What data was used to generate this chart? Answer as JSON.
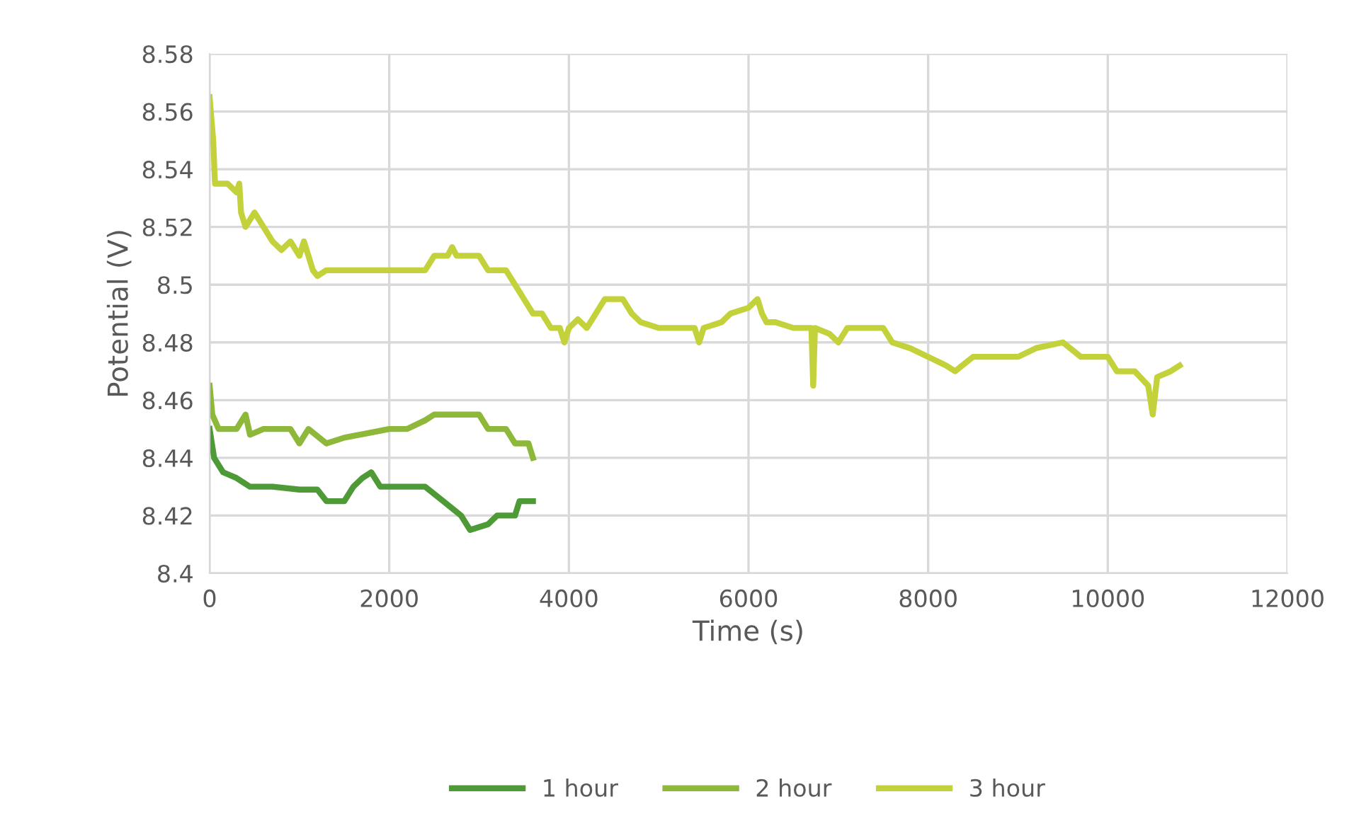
{
  "chart_data": {
    "type": "line",
    "xlabel": "Time (s)",
    "ylabel": "Potential (V)",
    "xlim": [
      0,
      12000
    ],
    "xticks": [
      0,
      2000,
      4000,
      6000,
      8000,
      10000,
      12000
    ],
    "ylim": [
      8.4,
      8.58
    ],
    "yticks": [
      {
        "value": 8.4,
        "label": "8.4"
      },
      {
        "value": 8.42,
        "label": "8.42"
      },
      {
        "value": 8.44,
        "label": "8.44"
      },
      {
        "value": 8.46,
        "label": "8.46"
      },
      {
        "value": 8.48,
        "label": "8.48"
      },
      {
        "value": 8.5,
        "label": "8.5"
      },
      {
        "value": 8.52,
        "label": "8.52"
      },
      {
        "value": 8.54,
        "label": "8.54"
      },
      {
        "value": 8.56,
        "label": "8.56"
      },
      {
        "value": 8.58,
        "label": "8.58"
      }
    ],
    "grid": true,
    "legend": "bottom",
    "marker": "none",
    "line_style": "solid",
    "series": [
      {
        "name": "1 hour",
        "color": "#4e9a36",
        "x": [
          0,
          50,
          150,
          300,
          450,
          700,
          1000,
          1200,
          1300,
          1500,
          1600,
          1700,
          1800,
          1900,
          2400,
          2600,
          2800,
          2900,
          3100,
          3200,
          3400,
          3450,
          3600
        ],
        "values": [
          8.45,
          8.44,
          8.435,
          8.433,
          8.43,
          8.43,
          8.429,
          8.429,
          8.425,
          8.425,
          8.43,
          8.433,
          8.435,
          8.43,
          8.43,
          8.425,
          8.42,
          8.415,
          8.417,
          8.42,
          8.42,
          8.425,
          8.425
        ]
      },
      {
        "name": "2 hour",
        "color": "#8db83a",
        "x": [
          0,
          30,
          100,
          300,
          400,
          450,
          600,
          900,
          1000,
          1100,
          1300,
          1500,
          2000,
          2200,
          2400,
          2500,
          3000,
          3100,
          3300,
          3400,
          3550,
          3600
        ],
        "values": [
          8.465,
          8.455,
          8.45,
          8.45,
          8.455,
          8.448,
          8.45,
          8.45,
          8.445,
          8.45,
          8.445,
          8.447,
          8.45,
          8.45,
          8.453,
          8.455,
          8.455,
          8.45,
          8.45,
          8.445,
          8.445,
          8.44
        ]
      },
      {
        "name": "3 hour",
        "color": "#c3d13b",
        "x": [
          0,
          40,
          60,
          200,
          300,
          330,
          350,
          400,
          500,
          600,
          700,
          800,
          900,
          1000,
          1050,
          1150,
          1200,
          1300,
          1500,
          2000,
          2400,
          2500,
          2650,
          2700,
          2750,
          3000,
          3100,
          3300,
          3400,
          3500,
          3600,
          3700,
          3800,
          3900,
          3950,
          4000,
          4100,
          4200,
          4300,
          4400,
          4600,
          4700,
          4800,
          5000,
          5400,
          5450,
          5500,
          5700,
          5800,
          6000,
          6100,
          6150,
          6200,
          6300,
          6500,
          6700,
          6720,
          6740,
          6900,
          7000,
          7100,
          7500,
          7600,
          7800,
          8000,
          8200,
          8300,
          8500,
          9000,
          9200,
          9500,
          9700,
          10000,
          10100,
          10300,
          10450,
          10500,
          10550,
          10700,
          10800
        ],
        "values": [
          8.565,
          8.55,
          8.535,
          8.535,
          8.532,
          8.535,
          8.525,
          8.52,
          8.525,
          8.52,
          8.515,
          8.512,
          8.515,
          8.51,
          8.515,
          8.505,
          8.503,
          8.505,
          8.505,
          8.505,
          8.505,
          8.51,
          8.51,
          8.513,
          8.51,
          8.51,
          8.505,
          8.505,
          8.5,
          8.495,
          8.49,
          8.49,
          8.485,
          8.485,
          8.48,
          8.485,
          8.488,
          8.485,
          8.49,
          8.495,
          8.495,
          8.49,
          8.487,
          8.485,
          8.485,
          8.48,
          8.485,
          8.487,
          8.49,
          8.492,
          8.495,
          8.49,
          8.487,
          8.487,
          8.485,
          8.485,
          8.465,
          8.485,
          8.483,
          8.48,
          8.485,
          8.485,
          8.48,
          8.478,
          8.475,
          8.472,
          8.47,
          8.475,
          8.475,
          8.478,
          8.48,
          8.475,
          8.475,
          8.47,
          8.47,
          8.465,
          8.455,
          8.468,
          8.47,
          8.472
        ]
      }
    ]
  }
}
